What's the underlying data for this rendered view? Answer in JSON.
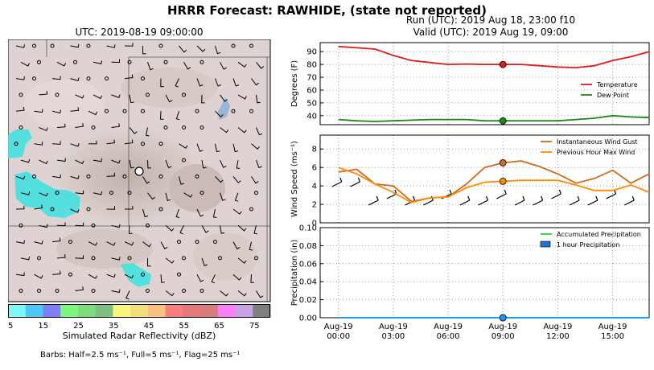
{
  "suptitle": "HRRR Forecast: RAWHIDE, (state not reported)",
  "map": {
    "title": "UTC: 2019-08-19 09:00:00",
    "colorbar": {
      "label": "Simulated Radar Reflectivity (dBZ)",
      "ticks": [
        "5",
        "15",
        "25",
        "35",
        "45",
        "55",
        "65",
        "75"
      ],
      "colors": [
        "#7ef7f7",
        "#4fc7f7",
        "#7f7ff7",
        "#7ff77f",
        "#7ddc7d",
        "#7fbf7f",
        "#f7f77f",
        "#f3de7d",
        "#f7c37f",
        "#f77f7f",
        "#e37979",
        "#d77d7d",
        "#f77ff7",
        "#c7a3e3",
        "#7f7f7f"
      ]
    },
    "barb_note": "Barbs: Half=2.5 ms⁻¹, Full=5 ms⁻¹, Flag=25 ms⁻¹"
  },
  "run": {
    "line1": "Run (UTC): 2019 Aug 18, 23:00 f10",
    "line2": "Valid (UTC): 2019 Aug 19, 09:00"
  },
  "chart_data": [
    {
      "type": "line",
      "ylabel": "Degrees (F)",
      "ylim": [
        33,
        97
      ],
      "yticks": [
        "40",
        "50",
        "60",
        "70",
        "80",
        "90"
      ],
      "x_hours": [
        0,
        1,
        2,
        3,
        4,
        5,
        6,
        7,
        8,
        9,
        10,
        11,
        12,
        13,
        14,
        15,
        16,
        17
      ],
      "series": [
        {
          "name": "Temperature",
          "color": "#e31a1c",
          "values": [
            94,
            93,
            92,
            87,
            83,
            81.5,
            80,
            80.3,
            80,
            80,
            80,
            79,
            78,
            77.5,
            79,
            83,
            86,
            90
          ]
        },
        {
          "name": "Dew Point",
          "color": "#1a8a1a",
          "values": [
            37,
            36,
            35.5,
            36,
            36.5,
            37,
            37,
            37,
            36,
            36,
            36,
            36,
            36,
            37,
            38,
            40,
            39,
            38.5
          ]
        }
      ],
      "highlight_hour": 9,
      "legend": "right"
    },
    {
      "type": "line",
      "ylabel": "Wind Speed (ms⁻¹)",
      "ylim": [
        0,
        9.5
      ],
      "yticks": [
        "0",
        "2",
        "4",
        "6",
        "8"
      ],
      "x_hours": [
        0,
        1,
        2,
        3,
        4,
        5,
        6,
        7,
        8,
        9,
        10,
        11,
        12,
        13,
        14,
        15,
        16,
        17
      ],
      "series": [
        {
          "name": "Instantaneous Wind Gust",
          "color": "#d2691e",
          "values": [
            5.5,
            5.8,
            4.2,
            4.0,
            2.3,
            2.7,
            2.8,
            4.2,
            6.0,
            6.5,
            6.7,
            6.1,
            5.3,
            4.3,
            4.8,
            5.7,
            4.3,
            5.3
          ]
        },
        {
          "name": "Previous Hour Max Wind",
          "color": "#ff8c00",
          "values": [
            6.0,
            5.3,
            4.2,
            3.3,
            2.2,
            2.7,
            2.8,
            3.8,
            4.4,
            4.5,
            4.6,
            4.6,
            4.6,
            4.1,
            3.5,
            3.5,
            4.1,
            3.3
          ]
        }
      ],
      "highlight_hour": 9,
      "legend": "top-right"
    },
    {
      "type": "line",
      "ylabel": "Precipitation (in)",
      "ylim": [
        0,
        0.1
      ],
      "yticks": [
        "0.00",
        "0.02",
        "0.04",
        "0.06",
        "0.08",
        "0.10"
      ],
      "series": [
        {
          "name": "Accumulated Precipitation",
          "color": "#32cd32",
          "values": [
            0,
            0,
            0,
            0,
            0,
            0,
            0,
            0,
            0,
            0,
            0,
            0,
            0,
            0,
            0,
            0,
            0,
            0
          ]
        },
        {
          "name": "1 hour Precipitation",
          "color": "#1e90ff",
          "values": [
            0,
            0,
            0,
            0,
            0,
            0,
            0,
            0,
            0,
            0,
            0,
            0,
            0,
            0,
            0,
            0,
            0,
            0
          ]
        }
      ],
      "highlight_hour": 9,
      "legend": "top-right"
    }
  ],
  "xticks": [
    {
      "hour": 0,
      "line1": "Aug-19",
      "line2": "00:00"
    },
    {
      "hour": 3,
      "line1": "Aug-19",
      "line2": "03:00"
    },
    {
      "hour": 6,
      "line1": "Aug-19",
      "line2": "06:00"
    },
    {
      "hour": 9,
      "line1": "Aug-19",
      "line2": "09:00"
    },
    {
      "hour": 12,
      "line1": "Aug-19",
      "line2": "12:00"
    },
    {
      "hour": 15,
      "line1": "Aug-19",
      "line2": "15:00"
    }
  ]
}
